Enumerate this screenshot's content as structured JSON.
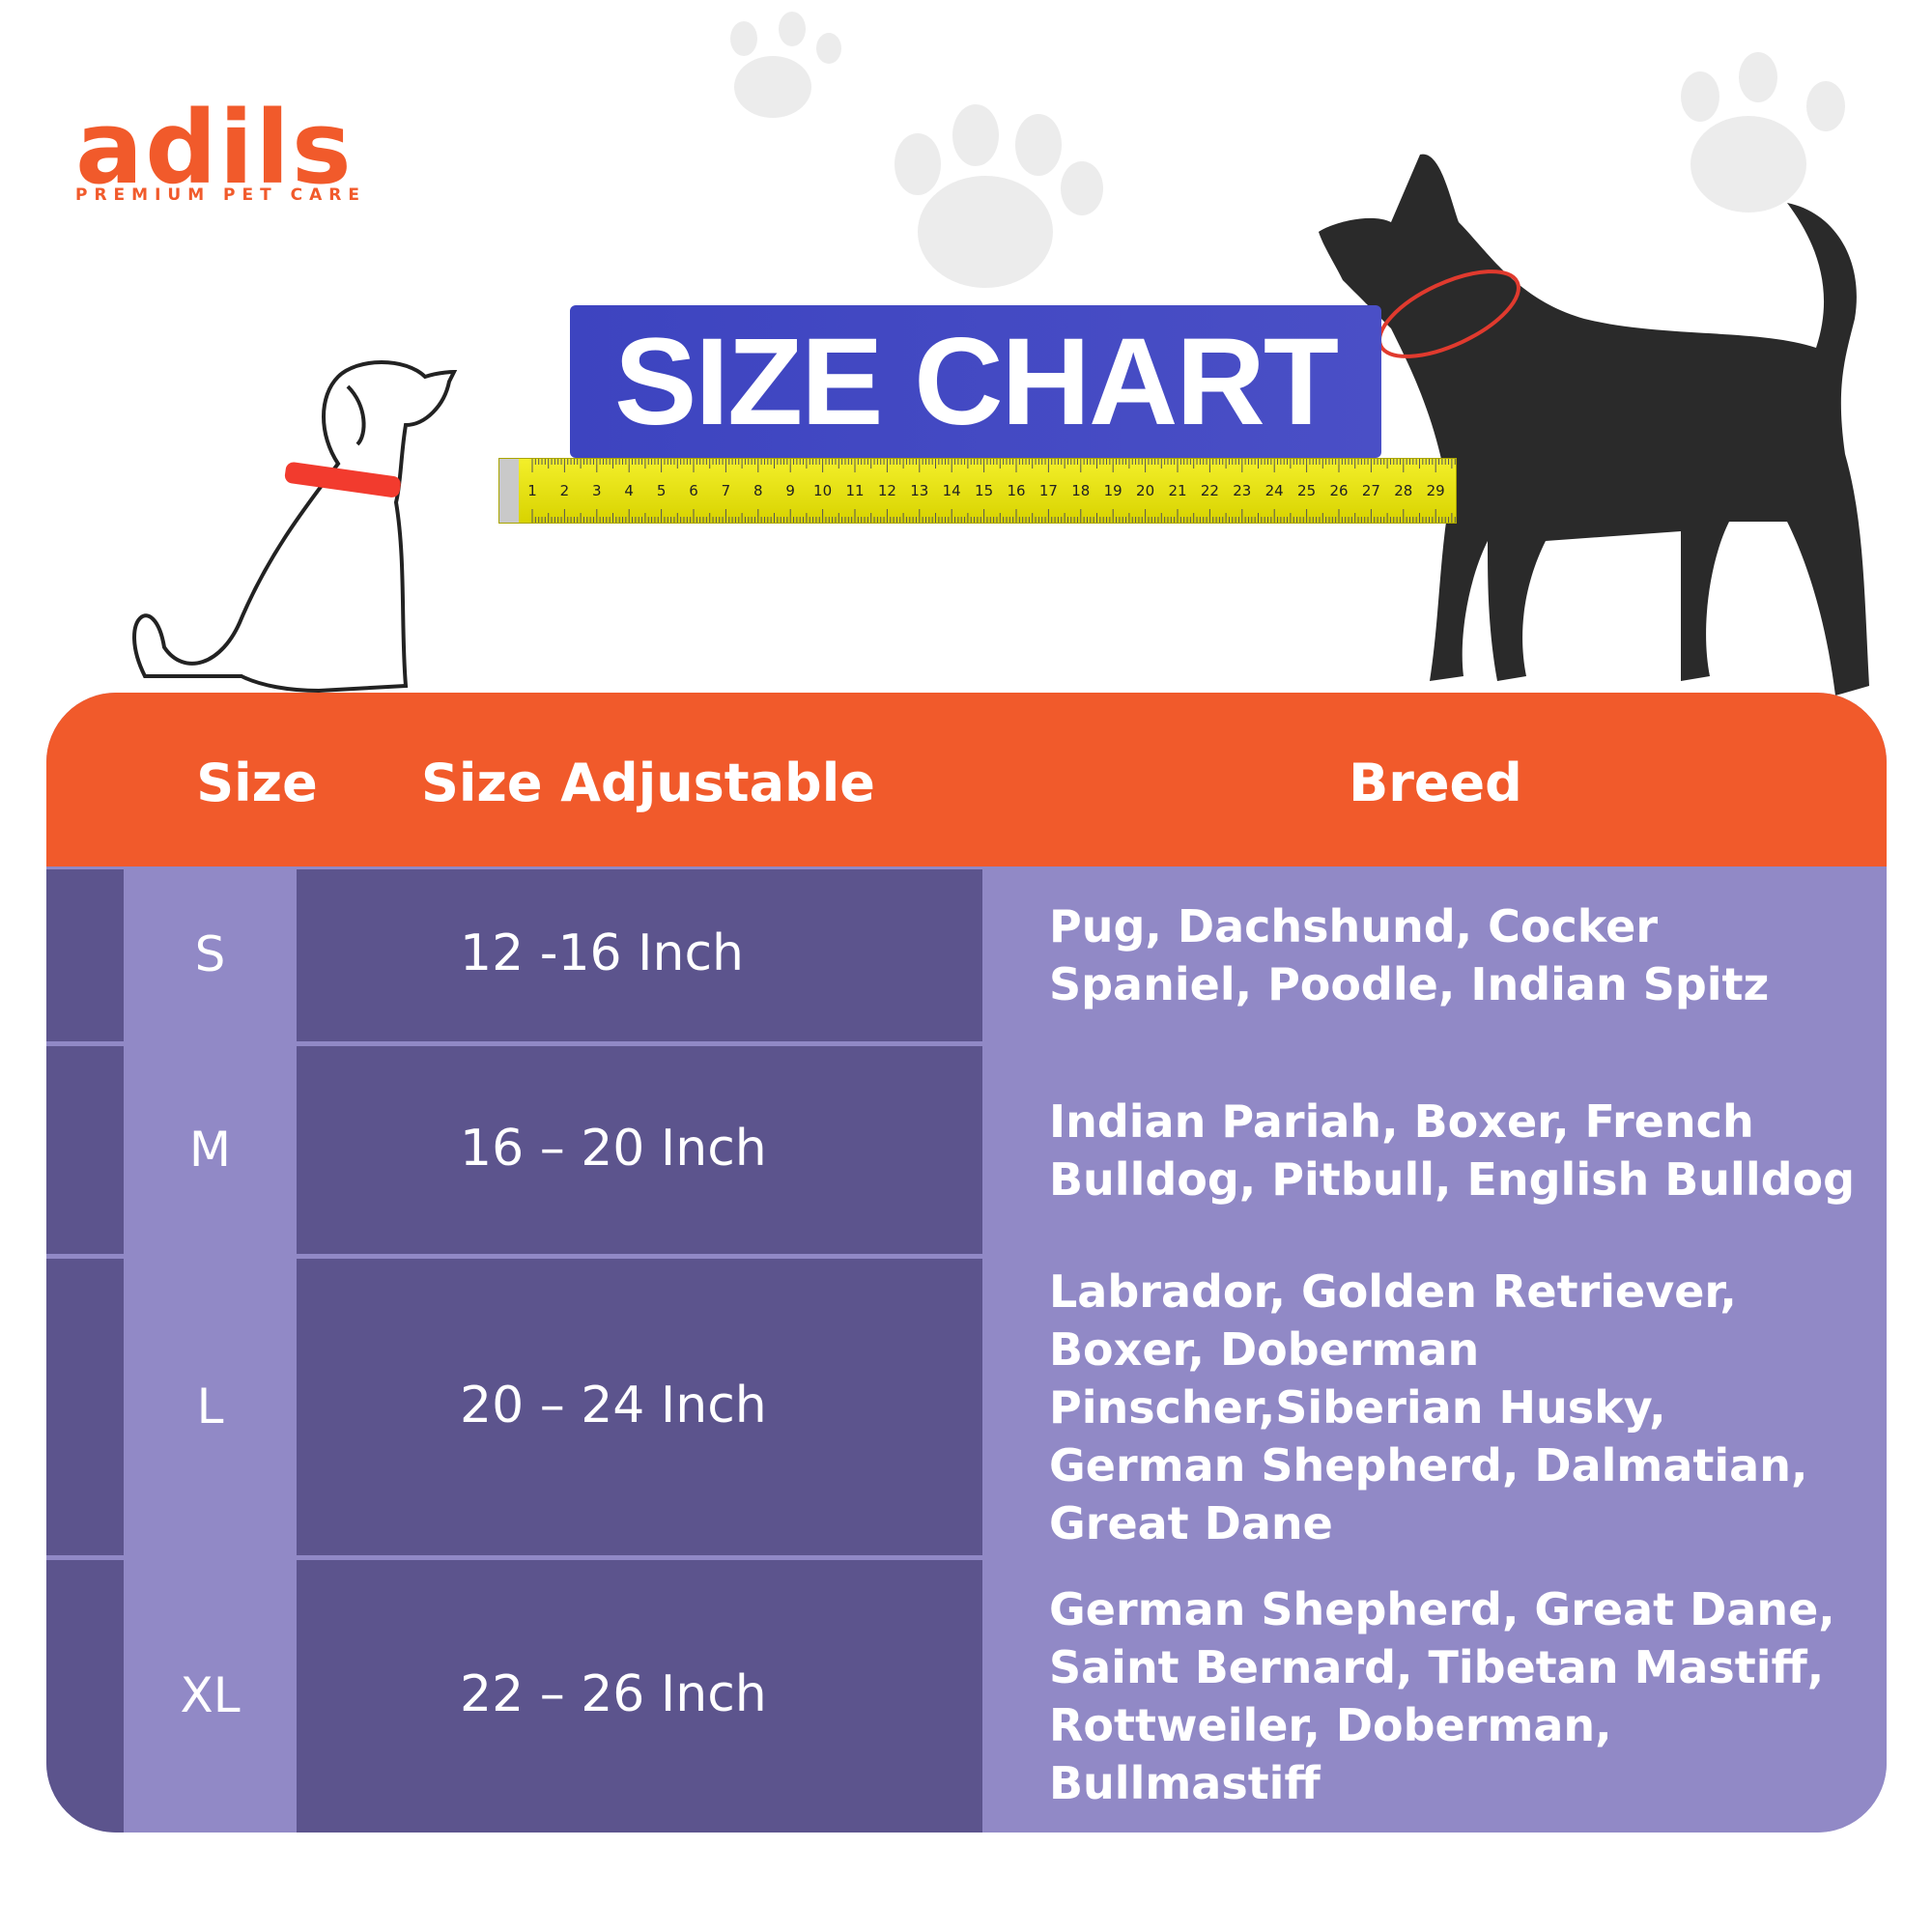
{
  "logo": {
    "name": "adils",
    "tagline": "PREMIUM PET CARE"
  },
  "banner": {
    "title": "SIZE CHART"
  },
  "ruler": {
    "marks": [
      1,
      2,
      3,
      4,
      5,
      6,
      7,
      8,
      9,
      10,
      11,
      12,
      13,
      14,
      15,
      16,
      17,
      18,
      19,
      20,
      21,
      22,
      23,
      24,
      25,
      26,
      27,
      28,
      29
    ]
  },
  "table": {
    "headers": [
      "Size",
      "Size Adjustable",
      "Breed"
    ],
    "rows": [
      [
        "S",
        "12 -16 Inch",
        "Pug, Dachshund, Cocker Spaniel, Poodle, Indian Spitz"
      ],
      [
        "M",
        "16 – 20 Inch",
        "Indian Pariah, Boxer, French Bulldog, Pitbull, English Bulldog"
      ],
      [
        "L",
        "20 – 24 Inch",
        "Labrador, Golden Retriever, Boxer, Doberman Pinscher,Siberian Husky, German Shepherd, Dalmatian, Great Dane"
      ],
      [
        "XL",
        "22 – 26 Inch",
        "German Shepherd, Great Dane, Saint Bernard, Tibetan Mastiff, Rottweiler, Doberman, Bullmastiff"
      ]
    ]
  }
}
